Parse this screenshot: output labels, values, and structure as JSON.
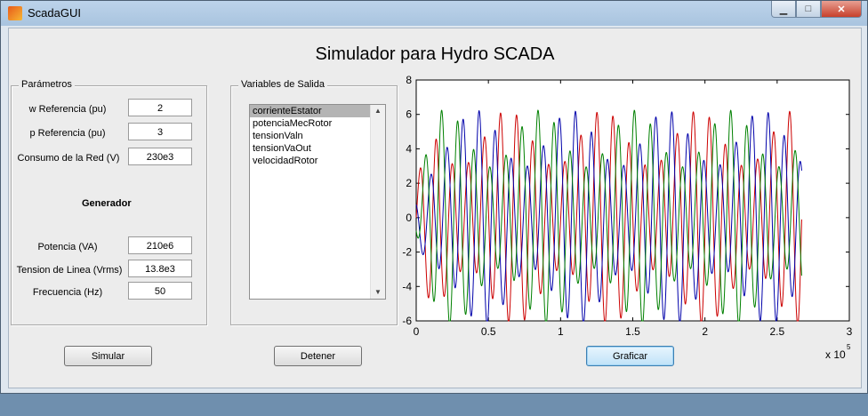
{
  "window": {
    "title": "ScadaGUI"
  },
  "main_title": "Simulador para Hydro SCADA",
  "parametros": {
    "title": "Parámetros",
    "fields": [
      {
        "label": "w Referencia (pu)",
        "value": "2"
      },
      {
        "label": "p Referencia (pu)",
        "value": "3"
      },
      {
        "label": "Consumo de la Red (V)",
        "value": "230e3"
      }
    ],
    "generador_title": "Generador",
    "generador_fields": [
      {
        "label": "Potencia (VA)",
        "value": "210e6"
      },
      {
        "label": "Tension de Linea (Vrms)",
        "value": "13.8e3"
      },
      {
        "label": "Frecuencia (Hz)",
        "value": "50"
      }
    ]
  },
  "variables": {
    "title": "Variables de Salida",
    "items": [
      "corrienteEstator",
      "potenciaMecRotor",
      "tensionValn",
      "tensionVaOut",
      "velocidadRotor"
    ],
    "selected_index": 0
  },
  "buttons": {
    "simular": "Simular",
    "detener": "Detener",
    "graficar": "Graficar"
  },
  "chart_data": {
    "type": "line",
    "xlim": [
      0,
      3
    ],
    "ylim": [
      -6,
      8
    ],
    "xticks": [
      "0",
      "0.5",
      "1",
      "1.5",
      "2",
      "2.5",
      "3"
    ],
    "yticks": [
      "8",
      "6",
      "4",
      "2",
      "0",
      "-2",
      "-4",
      "-6"
    ],
    "x_exponent_base": "x 10",
    "x_exponent_power": "5",
    "grid": false,
    "x_start": 0.0,
    "x_end": 2.67,
    "series": [
      {
        "color": "#cc0000",
        "phase": 0.0
      },
      {
        "color": "#0000aa",
        "phase": 2.094
      },
      {
        "color": "#008000",
        "phase": 4.189
      }
    ]
  }
}
